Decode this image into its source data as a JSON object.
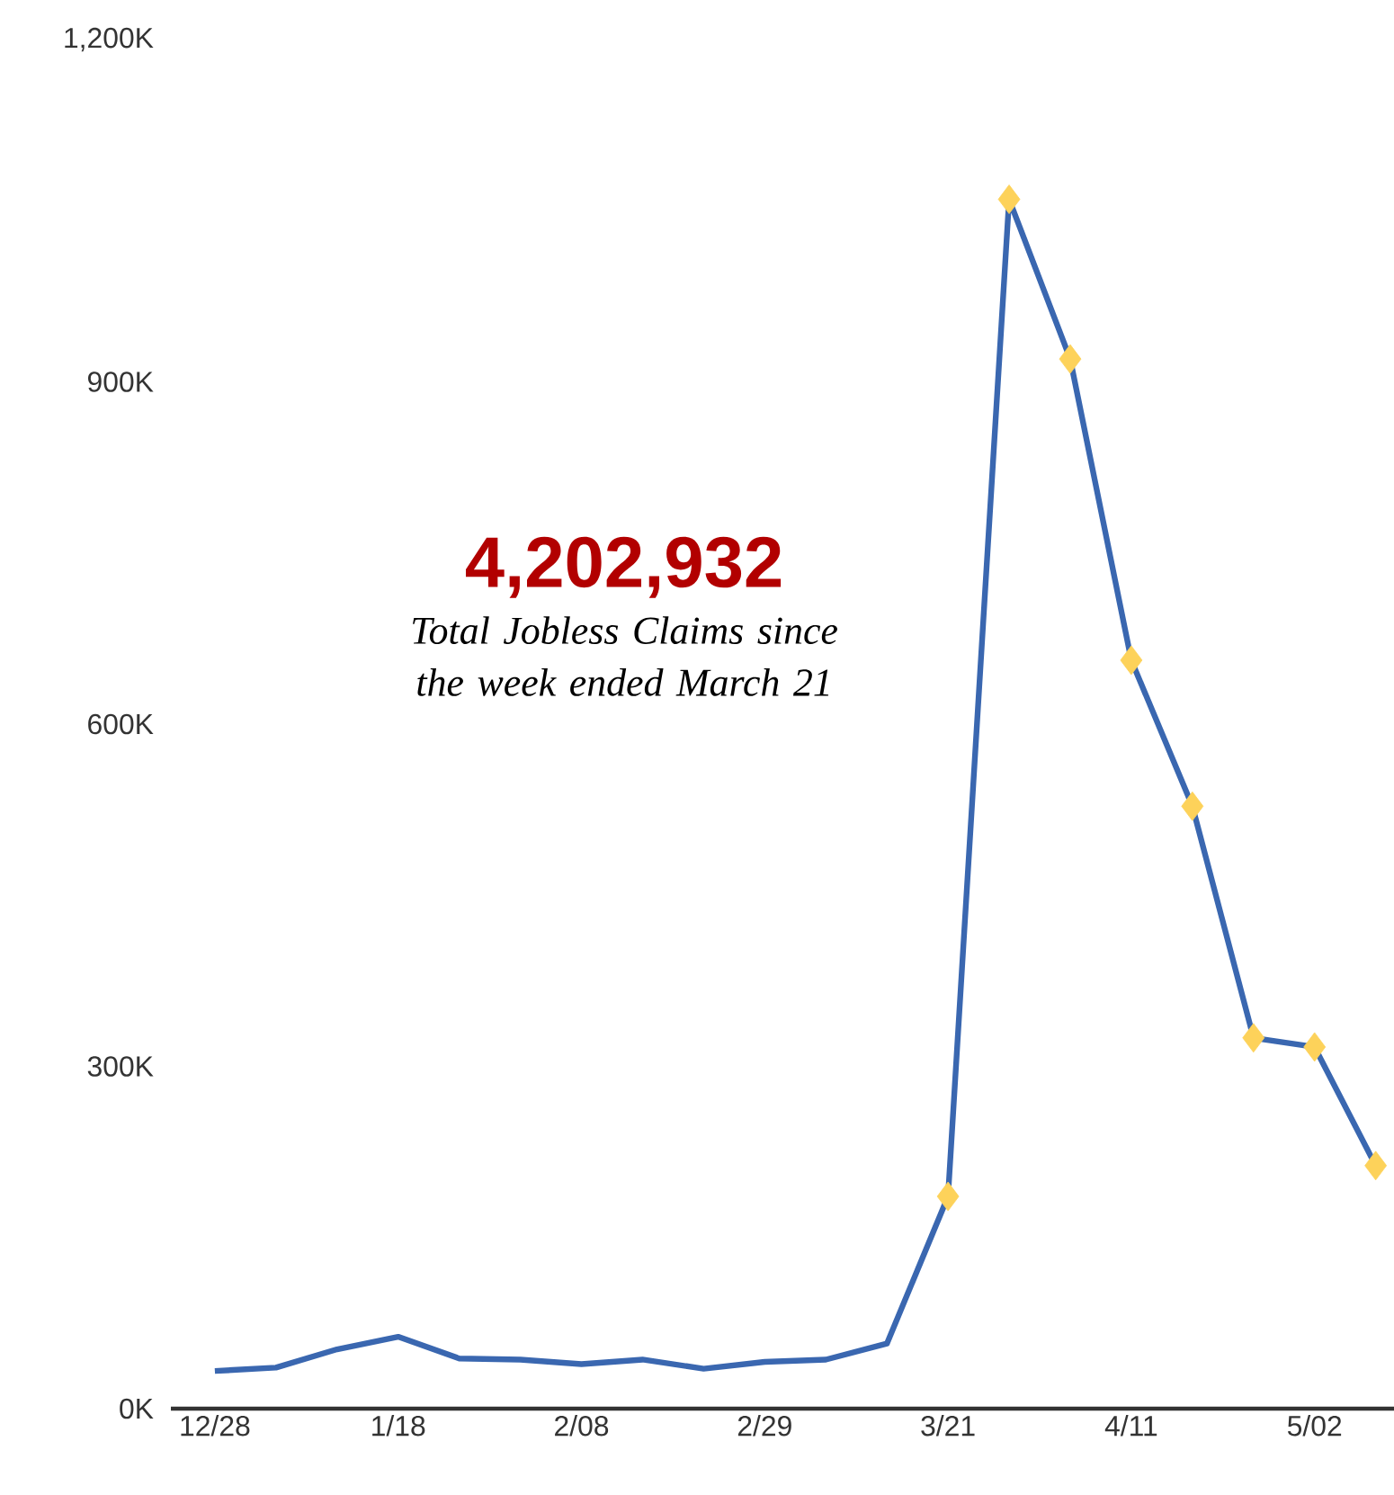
{
  "chart_data": {
    "type": "line",
    "categories": [
      "12/28",
      null,
      null,
      "1/18",
      null,
      null,
      "2/08",
      null,
      null,
      "2/29",
      null,
      null,
      "3/21",
      null,
      null,
      "4/11",
      null,
      null,
      "5/02",
      null
    ],
    "series": [
      {
        "color": "#3a67b0",
        "values": [
          33,
          36,
          52,
          63,
          44,
          43,
          39,
          43,
          35,
          41,
          43,
          57,
          186,
          1060,
          920,
          656,
          528,
          325,
          317,
          213
        ]
      },
      {
        "type": "scatter",
        "marker": "diamond",
        "color": "#fdd25a",
        "values": [
          null,
          null,
          null,
          null,
          null,
          null,
          null,
          null,
          null,
          null,
          null,
          null,
          186,
          1060,
          920,
          656,
          528,
          325,
          317,
          213
        ]
      }
    ],
    "ylim": [
      0,
      1200
    ],
    "yticks": [
      {
        "value": 0,
        "label": "0K"
      },
      {
        "value": 300,
        "label": "300K"
      },
      {
        "value": 600,
        "label": "600K"
      },
      {
        "value": 900,
        "label": "900K"
      },
      {
        "value": 1200,
        "label": "1,200K"
      }
    ],
    "grid": false,
    "annotations": [
      "4,202,932",
      "Total Jobless Claims since the week ended March 21"
    ]
  }
}
